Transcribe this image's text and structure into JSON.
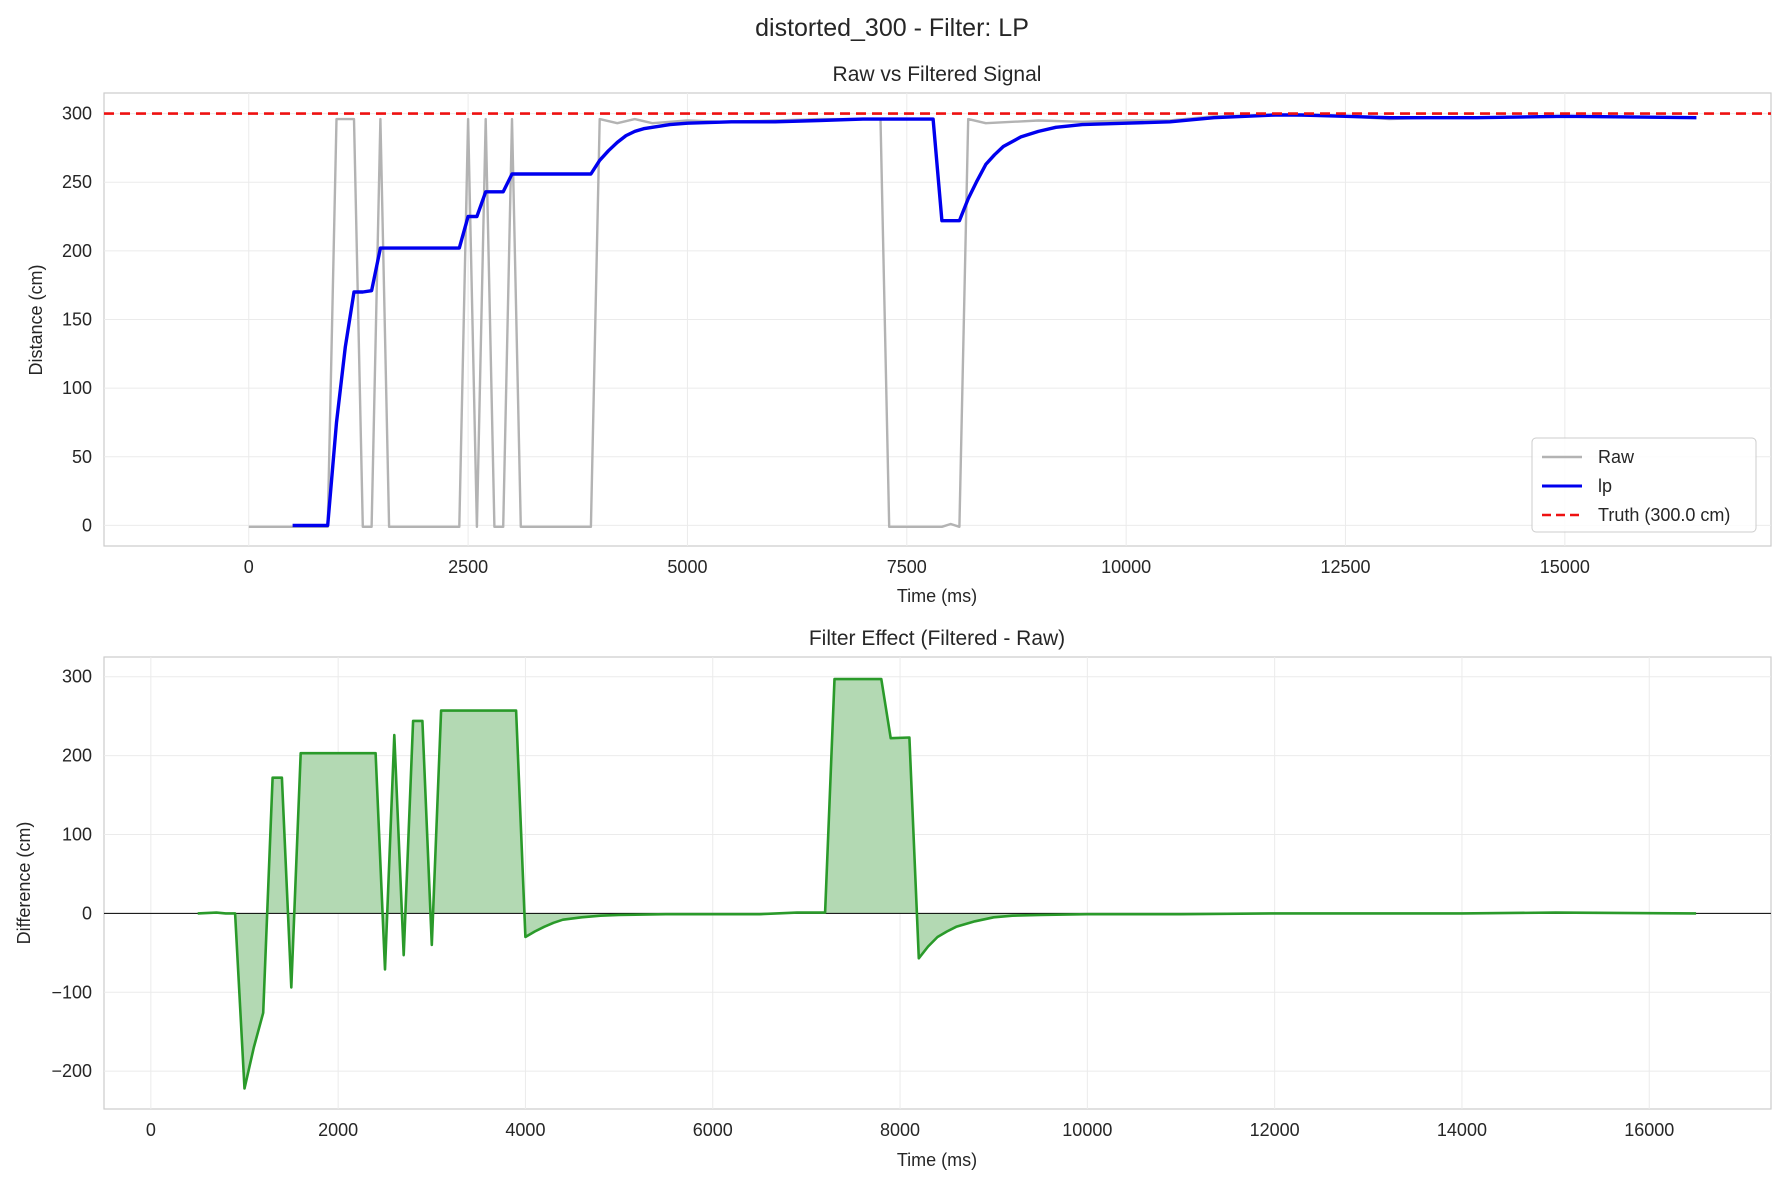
{
  "figure": {
    "suptitle": "distorted_300 - Filter: LP"
  },
  "chart_data": [
    {
      "type": "line",
      "title": "Raw vs Filtered Signal",
      "xlabel": "Time (ms)",
      "ylabel": "Distance (cm)",
      "xlim": [
        -1650,
        17350
      ],
      "ylim": [
        -15,
        315
      ],
      "xticks": [
        0,
        2500,
        5000,
        7500,
        10000,
        12500,
        15000
      ],
      "yticks": [
        0,
        50,
        100,
        150,
        200,
        250,
        300
      ],
      "grid": true,
      "legend": "bottom-right",
      "series": [
        {
          "name": "Raw",
          "color": "#b3b3b3",
          "points": [
            [
              0,
              -1
            ],
            [
              500,
              -1
            ],
            [
              800,
              -1
            ],
            [
              900,
              -1
            ],
            [
              1000,
              296
            ],
            [
              1200,
              296
            ],
            [
              1300,
              -1
            ],
            [
              1400,
              -1
            ],
            [
              1500,
              296
            ],
            [
              1600,
              -1
            ],
            [
              2400,
              -1
            ],
            [
              2500,
              296
            ],
            [
              2600,
              -1
            ],
            [
              2700,
              296
            ],
            [
              2800,
              -1
            ],
            [
              2900,
              -1
            ],
            [
              3000,
              296
            ],
            [
              3100,
              -1
            ],
            [
              3900,
              -1
            ],
            [
              4000,
              296
            ],
            [
              4200,
              293
            ],
            [
              4400,
              296
            ],
            [
              4600,
              293
            ],
            [
              5000,
              295
            ],
            [
              5400,
              294
            ],
            [
              6000,
              295
            ],
            [
              6500,
              296
            ],
            [
              7000,
              296
            ],
            [
              7200,
              296
            ],
            [
              7300,
              -1
            ],
            [
              7900,
              -1
            ],
            [
              8000,
              1
            ],
            [
              8100,
              -1
            ],
            [
              8200,
              296
            ],
            [
              8400,
              293
            ],
            [
              9000,
              295
            ],
            [
              9500,
              294
            ],
            [
              10000,
              295
            ],
            [
              10500,
              295
            ],
            [
              11000,
              298
            ],
            [
              11700,
              299
            ],
            [
              12500,
              298
            ],
            [
              13000,
              296
            ],
            [
              13500,
              297
            ],
            [
              14000,
              297
            ],
            [
              15000,
              298
            ],
            [
              16500,
              297
            ]
          ]
        },
        {
          "name": "lp",
          "color": "#0000ee",
          "points": [
            [
              500,
              0
            ],
            [
              800,
              0
            ],
            [
              900,
              0
            ],
            [
              1000,
              75
            ],
            [
              1100,
              130
            ],
            [
              1200,
              170
            ],
            [
              1300,
              170
            ],
            [
              1400,
              171
            ],
            [
              1500,
              202
            ],
            [
              2400,
              202
            ],
            [
              2500,
              225
            ],
            [
              2600,
              225
            ],
            [
              2700,
              243
            ],
            [
              2900,
              243
            ],
            [
              3000,
              256
            ],
            [
              3900,
              256
            ],
            [
              4000,
              266
            ],
            [
              4100,
              273
            ],
            [
              4200,
              279
            ],
            [
              4300,
              284
            ],
            [
              4400,
              287
            ],
            [
              4500,
              289
            ],
            [
              4600,
              290
            ],
            [
              4800,
              292
            ],
            [
              5000,
              293
            ],
            [
              5500,
              294
            ],
            [
              6000,
              294
            ],
            [
              6500,
              295
            ],
            [
              7000,
              296
            ],
            [
              7200,
              296
            ],
            [
              7800,
              296
            ],
            [
              7900,
              222
            ],
            [
              8100,
              222
            ],
            [
              8200,
              238
            ],
            [
              8300,
              251
            ],
            [
              8400,
              263
            ],
            [
              8500,
              270
            ],
            [
              8600,
              276
            ],
            [
              8800,
              283
            ],
            [
              9000,
              287
            ],
            [
              9200,
              290
            ],
            [
              9500,
              292
            ],
            [
              10000,
              293
            ],
            [
              10500,
              294
            ],
            [
              11000,
              297
            ],
            [
              11700,
              299
            ],
            [
              12000,
              299
            ],
            [
              12500,
              298
            ],
            [
              13000,
              297
            ],
            [
              13500,
              297
            ],
            [
              14000,
              297
            ],
            [
              15000,
              298
            ],
            [
              16500,
              297
            ]
          ]
        },
        {
          "name": "Truth (300.0 cm)",
          "color": "#ee1111",
          "dashed": true,
          "constant": 300
        }
      ]
    },
    {
      "type": "area",
      "title": "Filter Effect (Filtered - Raw)",
      "xlabel": "Time (ms)",
      "ylabel": "Difference (cm)",
      "xlim": [
        -500,
        17300
      ],
      "ylim": [
        -248,
        325
      ],
      "xticks": [
        0,
        2000,
        4000,
        6000,
        8000,
        10000,
        12000,
        14000,
        16000
      ],
      "yticks": [
        -200,
        -100,
        0,
        100,
        200,
        300
      ],
      "grid": true,
      "baseline": 0,
      "color": "#2a9a2a",
      "fill": "#b3d9b3",
      "points": [
        [
          500,
          0
        ],
        [
          700,
          1
        ],
        [
          800,
          0
        ],
        [
          900,
          0
        ],
        [
          1000,
          -222
        ],
        [
          1100,
          -170
        ],
        [
          1200,
          -126
        ],
        [
          1300,
          172
        ],
        [
          1400,
          172
        ],
        [
          1500,
          -94
        ],
        [
          1600,
          203
        ],
        [
          2400,
          203
        ],
        [
          2500,
          -71
        ],
        [
          2600,
          226
        ],
        [
          2700,
          -53
        ],
        [
          2800,
          244
        ],
        [
          2900,
          244
        ],
        [
          3000,
          -40
        ],
        [
          3100,
          257
        ],
        [
          3900,
          257
        ],
        [
          4000,
          -30
        ],
        [
          4100,
          -23
        ],
        [
          4200,
          -17
        ],
        [
          4300,
          -12
        ],
        [
          4400,
          -8
        ],
        [
          4600,
          -5
        ],
        [
          4800,
          -3
        ],
        [
          5000,
          -2
        ],
        [
          5500,
          -1
        ],
        [
          6000,
          -1
        ],
        [
          6500,
          -1
        ],
        [
          6900,
          1
        ],
        [
          7100,
          1
        ],
        [
          7200,
          1
        ],
        [
          7300,
          297
        ],
        [
          7800,
          297
        ],
        [
          7900,
          222
        ],
        [
          8100,
          223
        ],
        [
          8200,
          -57
        ],
        [
          8300,
          -42
        ],
        [
          8400,
          -30
        ],
        [
          8500,
          -23
        ],
        [
          8600,
          -17
        ],
        [
          8800,
          -10
        ],
        [
          9000,
          -5
        ],
        [
          9200,
          -3
        ],
        [
          9500,
          -2
        ],
        [
          10000,
          -1
        ],
        [
          10500,
          -1
        ],
        [
          11000,
          -1
        ],
        [
          12000,
          0
        ],
        [
          13000,
          0
        ],
        [
          14000,
          0
        ],
        [
          15000,
          1
        ],
        [
          16500,
          0
        ]
      ]
    }
  ],
  "legend": {
    "entries": [
      {
        "label": "Raw",
        "color": "#b3b3b3",
        "dashed": false
      },
      {
        "label": "lp",
        "color": "#0000ee",
        "dashed": false
      },
      {
        "label": "Truth (300.0 cm)",
        "color": "#ee1111",
        "dashed": true
      }
    ]
  }
}
